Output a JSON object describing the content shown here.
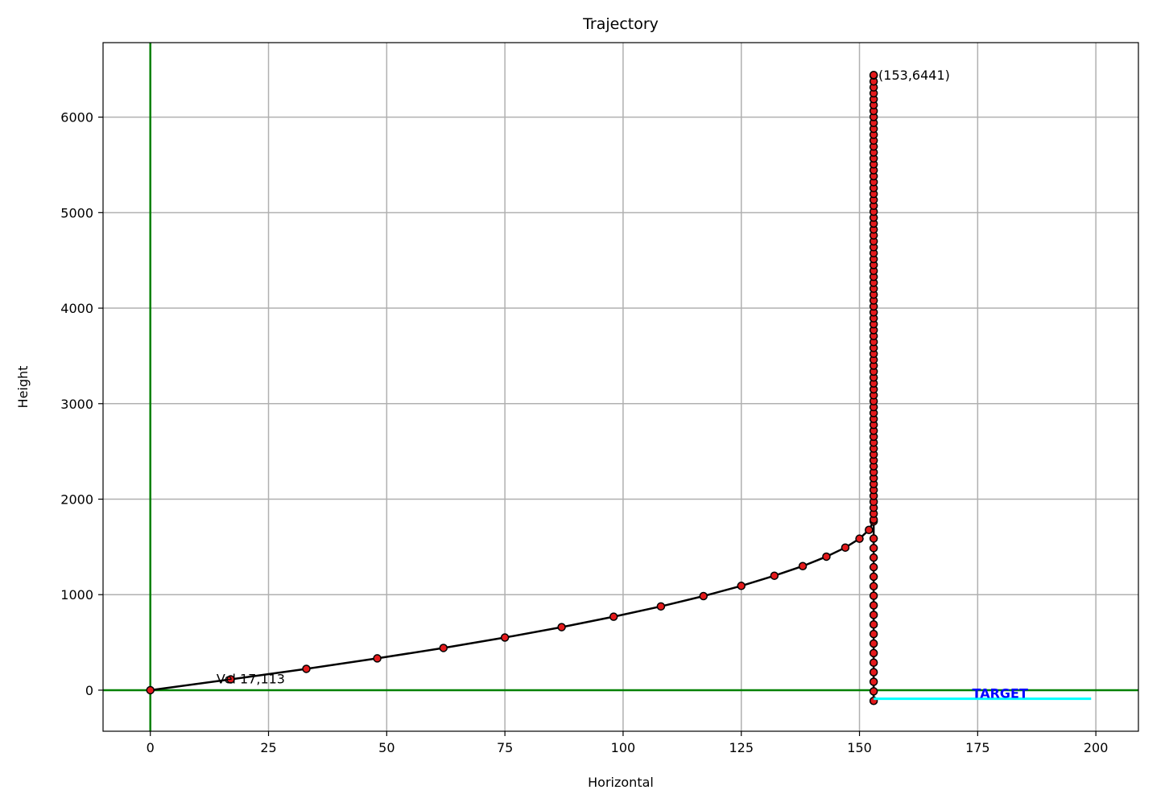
{
  "chart_data": {
    "type": "line",
    "title": "Trajectory",
    "xlabel": "Horizontal",
    "ylabel": "Height",
    "xlim": [
      -10,
      209
    ],
    "ylim": [
      -430,
      6780
    ],
    "xticks": [
      0,
      25,
      50,
      75,
      100,
      125,
      150,
      175,
      200
    ],
    "yticks": [
      0,
      1000,
      2000,
      3000,
      4000,
      5000,
      6000
    ],
    "grid": true,
    "reference_lines": {
      "x": 0,
      "y": 0,
      "color": "#008000"
    },
    "colors": {
      "trajectory_line": "#000000",
      "marker_fill": "#e41a1c",
      "marker_edge": "#000000",
      "target_line": "#00ffff",
      "target_text": "#0000ff"
    },
    "series": [
      {
        "x": [
          0,
          17,
          33,
          48,
          62,
          75,
          87,
          98,
          108,
          117,
          125,
          132,
          138,
          143,
          147,
          150,
          152,
          153
        ],
        "y": [
          0,
          113,
          223,
          333,
          442,
          551,
          660,
          769,
          877,
          985,
          1092,
          1198,
          1299,
          1398,
          1493,
          1586,
          1678,
          1768
        ]
      }
    ],
    "vertical_segment": {
      "x": 153,
      "y_start": 1786,
      "y_end": 6441,
      "step": 62
    },
    "descent_points": {
      "x": 153,
      "y": [
        1588,
        1488,
        1388,
        1288,
        1188,
        1088,
        988,
        888,
        788,
        688,
        588,
        488,
        388,
        288,
        188,
        88,
        -12,
        -112
      ]
    },
    "target": {
      "label": "TARGET",
      "x_start": 153,
      "x_end": 199,
      "y": -90
    },
    "annotations": [
      {
        "text": "Vel 17,113",
        "x": 14,
        "y": 120
      },
      {
        "text": "(153,6441)",
        "x": 154,
        "y": 6441
      }
    ]
  }
}
